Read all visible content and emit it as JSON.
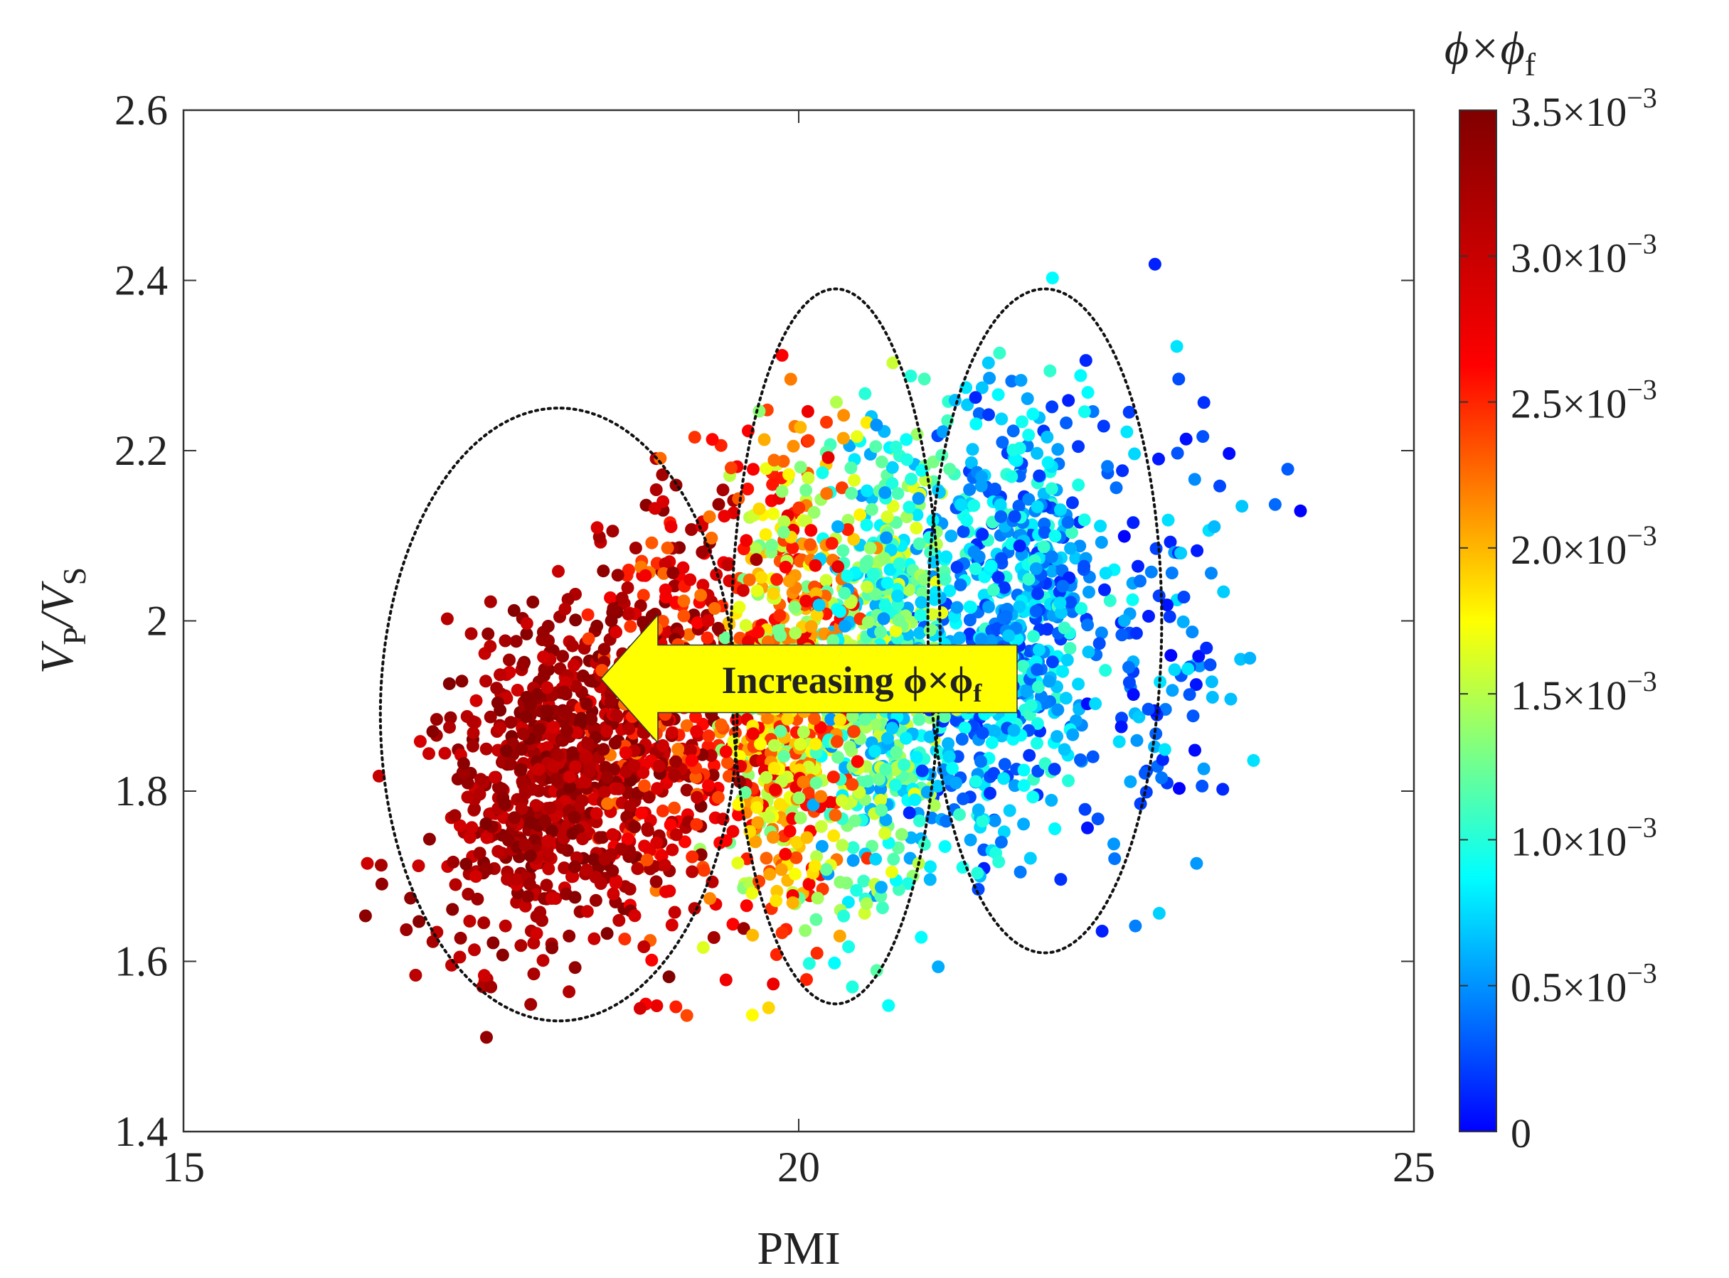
{
  "chart_data": {
    "type": "scatter",
    "xlabel": "PMI",
    "ylabel": "V_P/V_S",
    "xlim": [
      15,
      25
    ],
    "ylim": [
      1.4,
      2.6
    ],
    "xticks": [
      "15",
      "20",
      "25"
    ],
    "yticks": [
      "1.4",
      "1.6",
      "1.8",
      "2",
      "2.2",
      "2.4",
      "2.6"
    ],
    "colorbar": {
      "title": "ϕ×ϕf",
      "range": [
        0,
        0.0035
      ],
      "colormap": "jet",
      "ticks": [
        {
          "value": 0,
          "label": "0"
        },
        {
          "value": 0.0005,
          "label": "0.5×10",
          "exp": "−3"
        },
        {
          "value": 0.001,
          "label": "1.0×10",
          "exp": "−3"
        },
        {
          "value": 0.0015,
          "label": "1.5×10",
          "exp": "−3"
        },
        {
          "value": 0.002,
          "label": "2.0×10",
          "exp": "−3"
        },
        {
          "value": 0.0025,
          "label": "2.5×10",
          "exp": "−3"
        },
        {
          "value": 0.003,
          "label": "3.0×10",
          "exp": "−3"
        },
        {
          "value": 0.0035,
          "label": "3.5×10",
          "exp": "−3"
        }
      ]
    },
    "annotation": {
      "text": "Increasing ϕ×ϕf",
      "color": "#ffff00",
      "direction": "left"
    },
    "clusters": [
      {
        "x_center": 18.05,
        "y_center": 1.89,
        "x_half_width": 1.45,
        "y_half_height": 0.36,
        "value": 0.0034
      },
      {
        "x_center": 20.3,
        "y_center": 1.97,
        "x_half_width": 0.85,
        "y_half_height": 0.42,
        "value": 0.0017
      },
      {
        "x_center": 22.0,
        "y_center": 2.0,
        "x_half_width": 0.95,
        "y_half_height": 0.39,
        "value": 0.0005
      }
    ],
    "point_groups": [
      {
        "x_center": 18.0,
        "y_center": 1.82,
        "x_spread": 0.75,
        "y_spread": 0.12,
        "value_range": [
          0.0029,
          0.0035
        ],
        "count": 700
      },
      {
        "x_center": 19.0,
        "y_center": 1.9,
        "x_spread": 0.55,
        "y_spread": 0.16,
        "value_range": [
          0.0022,
          0.0035
        ],
        "count": 450
      },
      {
        "x_center": 19.9,
        "y_center": 1.92,
        "x_spread": 0.45,
        "y_spread": 0.17,
        "value_range": [
          0.0012,
          0.0028
        ],
        "count": 650
      },
      {
        "x_center": 20.7,
        "y_center": 1.95,
        "x_spread": 0.5,
        "y_spread": 0.16,
        "value_range": [
          0.0005,
          0.0017
        ],
        "count": 650
      },
      {
        "x_center": 21.7,
        "y_center": 1.99,
        "x_spread": 0.6,
        "y_spread": 0.16,
        "value_range": [
          0.0001,
          0.0011
        ],
        "count": 650
      },
      {
        "x_center": 23.0,
        "y_center": 1.98,
        "x_spread": 0.7,
        "y_spread": 0.17,
        "value_range": [
          0.0,
          0.0008
        ],
        "count": 120
      }
    ]
  }
}
